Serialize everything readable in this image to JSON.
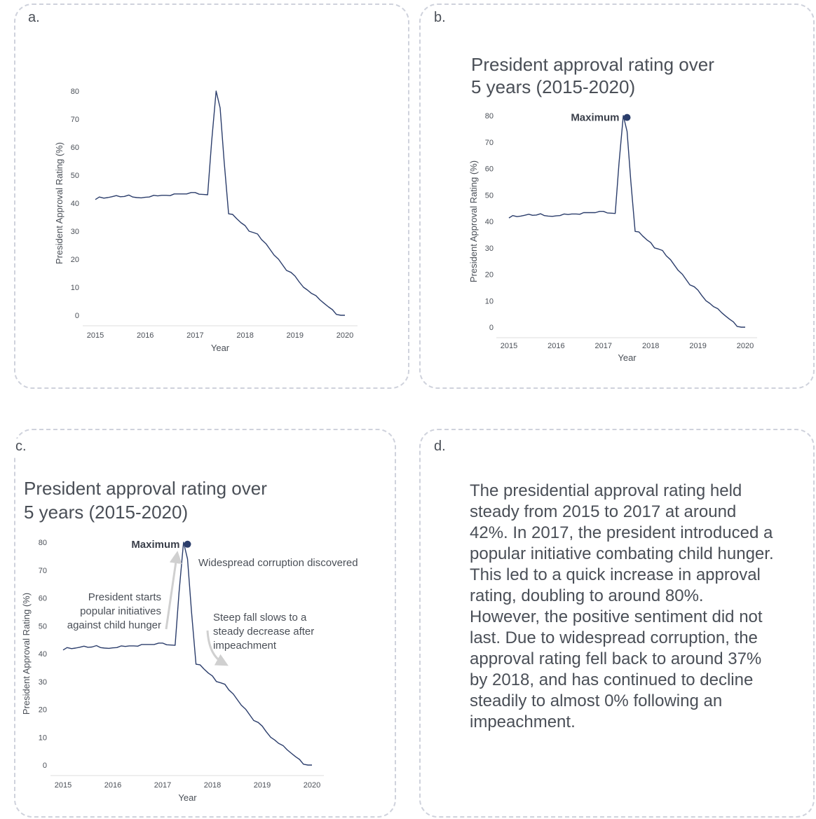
{
  "panels": {
    "a": {
      "label": "a."
    },
    "b": {
      "label": "b."
    },
    "c": {
      "label": "c."
    },
    "d": {
      "label": "d.",
      "text": "The presidential approval rating held steady from 2015 to 2017 at around 42%. In 2017, the president introduced a popular initiative combating child hunger. This led to a quick increase in approval rating, doubling to around 80%. However, the positive sentiment did not last. Due to widespread corruption, the approval rating fell back to around 37% by 2018, and has continued to decline steadily to almost 0% following an impeachment."
    }
  },
  "colors": {
    "line": "#2b3d6b",
    "arrow": "#d0d0d0",
    "axis": "#dcdcdc"
  },
  "chart_data": [
    {
      "type": "line",
      "panel": "a",
      "title": "",
      "xlabel": "Year",
      "ylabel": "President Approval Rating (%)",
      "xlim": [
        2015,
        2020
      ],
      "ylim": [
        0,
        80
      ],
      "xticks": [
        2015,
        2016,
        2017,
        2018,
        2019,
        2020
      ],
      "yticks": [
        0,
        10,
        20,
        30,
        40,
        50,
        60,
        70,
        80
      ],
      "grid": false,
      "series": [
        {
          "x": [
            2015.0,
            2015.08,
            2015.17,
            2015.25,
            2015.33,
            2015.42,
            2015.5,
            2015.58,
            2015.67,
            2015.75,
            2015.83,
            2015.92,
            2016.0,
            2016.08,
            2016.17,
            2016.25,
            2016.33,
            2016.42,
            2016.5,
            2016.58,
            2016.67,
            2016.75,
            2016.83,
            2016.92,
            2017.0,
            2017.08,
            2017.17,
            2017.25,
            2017.33,
            2017.42,
            2017.5,
            2017.58,
            2017.67,
            2017.75,
            2017.83,
            2017.92,
            2018.0,
            2018.08,
            2018.17,
            2018.25,
            2018.33,
            2018.42,
            2018.5,
            2018.58,
            2018.67,
            2018.75,
            2018.83,
            2018.92,
            2019.0,
            2019.08,
            2019.17,
            2019.25,
            2019.33,
            2019.42,
            2019.5,
            2019.58,
            2019.67,
            2019.75,
            2019.83,
            2019.92,
            2020.0
          ],
          "values": [
            41.3,
            42.2,
            41.8,
            42.0,
            42.3,
            42.7,
            42.3,
            42.4,
            42.9,
            42.2,
            42.0,
            41.9,
            42.1,
            42.2,
            42.8,
            42.6,
            42.8,
            42.8,
            42.7,
            43.3,
            43.3,
            43.3,
            43.3,
            43.8,
            43.8,
            43.2,
            43.1,
            43.0,
            62.0,
            80.0,
            74.0,
            55.0,
            36.2,
            36.0,
            34.5,
            33.0,
            32.0,
            30.0,
            29.5,
            29.0,
            27.0,
            25.5,
            23.5,
            21.5,
            20.0,
            18.0,
            16.0,
            15.3,
            14.0,
            12.0,
            10.0,
            9.0,
            7.8,
            7.0,
            5.5,
            4.3,
            3.0,
            2.0,
            0.3,
            0.0,
            0.0
          ]
        }
      ]
    },
    {
      "type": "line",
      "panel": "b",
      "title": "President approval rating over 5 years (2015-2020)",
      "title_lines": [
        "President approval rating over",
        "5 years (2015-2020)"
      ],
      "xlabel": "Year",
      "ylabel": "President Approval Rating (%)",
      "xlim": [
        2015,
        2020
      ],
      "ylim": [
        0,
        80
      ],
      "xticks": [
        2015,
        2016,
        2017,
        2018,
        2019,
        2020
      ],
      "yticks": [
        0,
        10,
        20,
        30,
        40,
        50,
        60,
        70,
        80
      ],
      "grid": false,
      "highlight": {
        "label": "Maximum",
        "x": 2017.5,
        "y": 79.3
      },
      "series": [
        {
          "ref": "a"
        }
      ]
    },
    {
      "type": "line",
      "panel": "c",
      "title": "President approval rating over 5 years (2015-2020)",
      "title_lines": [
        "President approval rating over",
        "5 years (2015-2020)"
      ],
      "xlabel": "Year",
      "ylabel": "President Approval Rating (%)",
      "xlim": [
        2015,
        2020
      ],
      "ylim": [
        0,
        80
      ],
      "xticks": [
        2015,
        2016,
        2017,
        2018,
        2019,
        2020
      ],
      "yticks": [
        0,
        10,
        20,
        30,
        40,
        50,
        60,
        70,
        80
      ],
      "grid": false,
      "highlight": {
        "label": "Maximum",
        "x": 2017.5,
        "y": 79.3
      },
      "annotations": [
        {
          "lines": [
            "President starts",
            "popular initiatives",
            "against child hunger"
          ],
          "align": "end"
        },
        {
          "lines": [
            "Widespread corruption discovered"
          ],
          "align": "start"
        },
        {
          "lines": [
            "Steep fall slows to a",
            "steady decrease after",
            "impeachment"
          ],
          "align": "start"
        }
      ],
      "series": [
        {
          "ref": "a"
        }
      ]
    }
  ]
}
